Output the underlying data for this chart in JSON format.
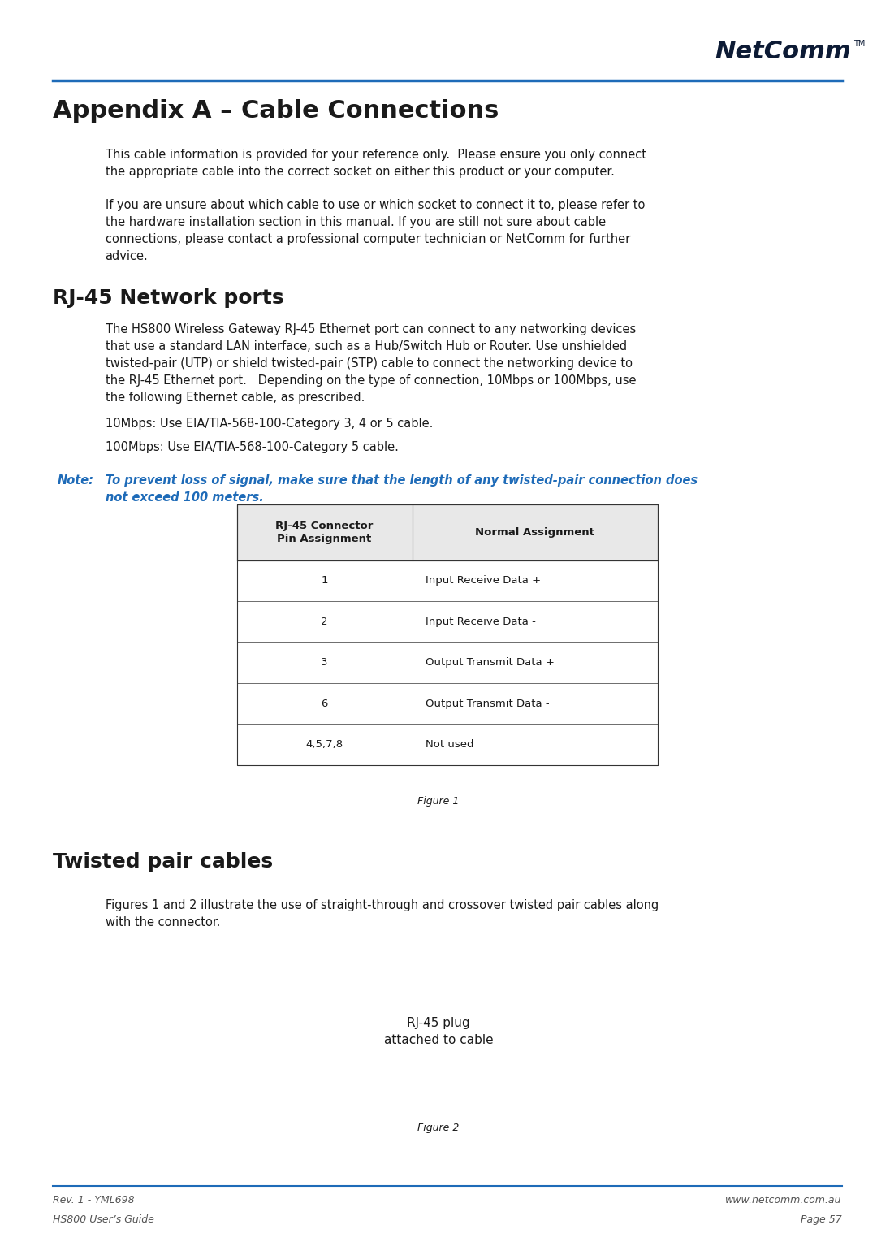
{
  "page_bg": "#ffffff",
  "top_line_color": "#1e6bb8",
  "header_logo_text": "NetComm",
  "header_logo_tm": "TM",
  "title": "Appendix A – Cable Connections",
  "title_color": "#1a1a1a",
  "title_fontsize": 22,
  "section1_title": "RJ-45 Network ports",
  "section1_fontsize": 18,
  "section2_title": "Twisted pair cables",
  "section2_fontsize": 18,
  "body_color": "#1a1a1a",
  "body_fontsize": 10.5,
  "note_color": "#1e6bb8",
  "note_label_color": "#1e6bb8",
  "indent": 0.12,
  "para1": "This cable information is provided for your reference only.  Please ensure you only connect\nthe appropriate cable into the correct socket on either this product or your computer.",
  "para2": "If you are unsure about which cable to use or which socket to connect it to, please refer to\nthe hardware installation section in this manual. If you are still not sure about cable\nconnections, please contact a professional computer technician or NetComm for further\nadvice.",
  "para3": "The HS800 Wireless Gateway RJ-45 Ethernet port can connect to any networking devices\nthat use a standard LAN interface, such as a Hub/Switch Hub or Router. Use unshielded\ntwisted-pair (UTP) or shield twisted-pair (STP) cable to connect the networking device to\nthe RJ-45 Ethernet port.   Depending on the type of connection, 10Mbps or 100Mbps, use\nthe following Ethernet cable, as prescribed.",
  "para4": "10Mbps: Use EIA/TIA-568-100-Category 3, 4 or 5 cable.",
  "para5": "100Mbps: Use EIA/TIA-568-100-Category 5 cable.",
  "note_label": "Note:",
  "note_text": "To prevent loss of signal, make sure that the length of any twisted-pair connection does\nnot exceed 100 meters.",
  "table_header_col1": "RJ-45 Connector\nPin Assignment",
  "table_header_col2": "Normal Assignment",
  "table_rows": [
    [
      "1",
      "Input Receive Data +"
    ],
    [
      "2",
      "Input Receive Data -"
    ],
    [
      "3",
      "Output Transmit Data +"
    ],
    [
      "6",
      "Output Transmit Data -"
    ],
    [
      "4,5,7,8",
      "Not used"
    ]
  ],
  "figure1_caption": "Figure 1",
  "para6": "Figures 1 and 2 illustrate the use of straight-through and crossover twisted pair cables along\nwith the connector.",
  "rj45_label1": "RJ-45 plug",
  "rj45_label2": "attached to cable",
  "figure2_caption": "Figure 2",
  "footer_left1": "Rev. 1 - YML698",
  "footer_left2": "HS800 User’s Guide",
  "footer_right1": "www.netcomm.com.au",
  "footer_right2": "Page 57",
  "footer_line_color": "#1e6bb8",
  "footer_text_color": "#555555",
  "footer_fontsize": 9
}
